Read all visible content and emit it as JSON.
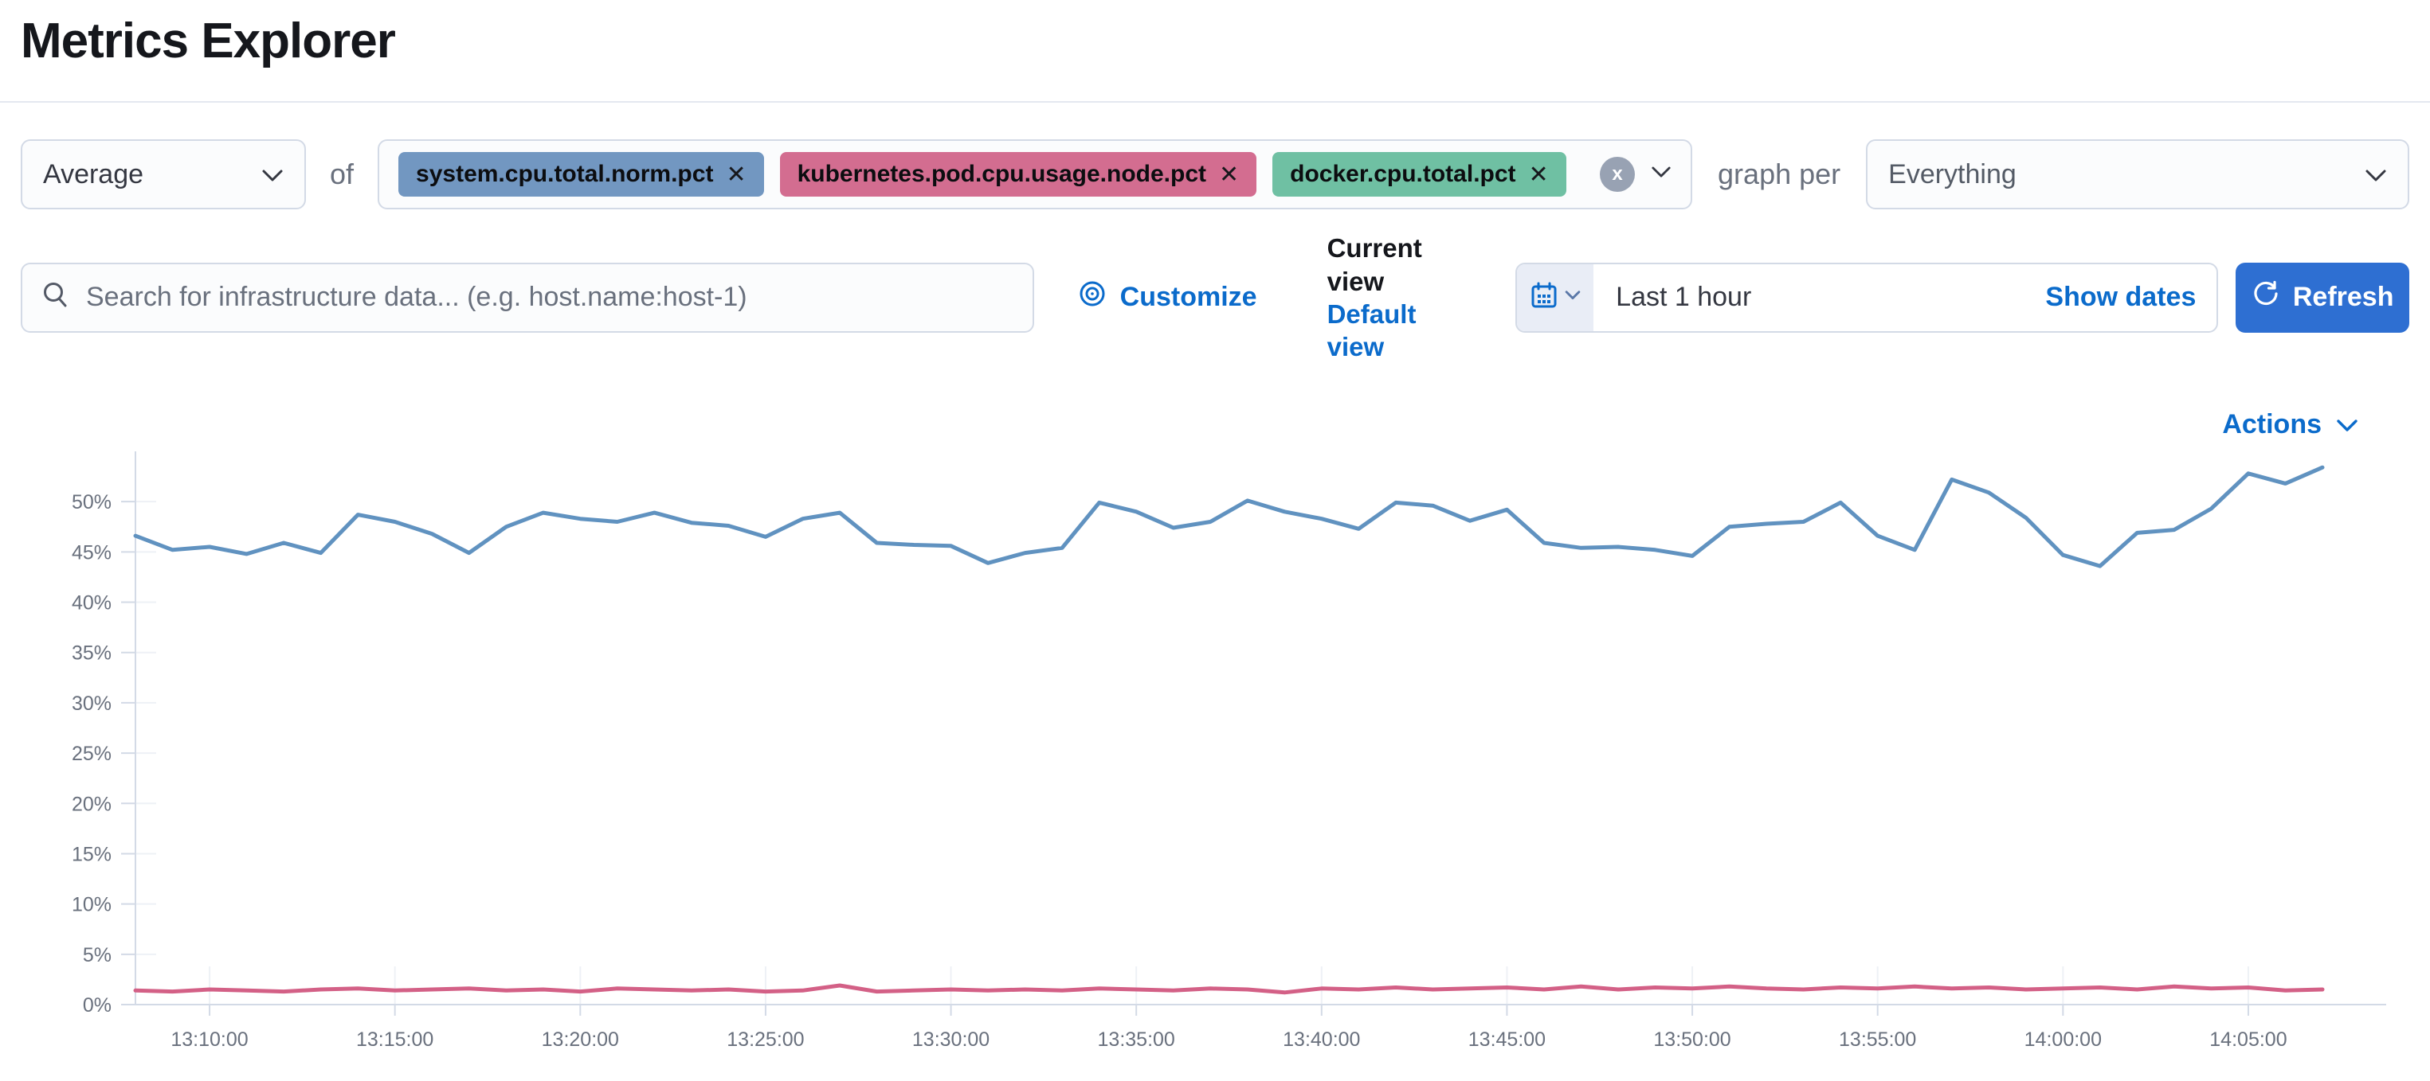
{
  "page": {
    "title": "Metrics Explorer"
  },
  "icons": {
    "aggregation_dropdown": "chevron-down-icon",
    "metrics_clear": "clear-circle-icon",
    "metrics_dropdown": "chevron-down-icon",
    "groupby_dropdown": "chevron-down-icon",
    "search": "magnifier-icon",
    "customize": "eye-icon",
    "datepicker": "calendar-icon",
    "refresh": "refresh-icon",
    "actions": "chevron-down-icon"
  },
  "colors": {
    "link_blue": "#0b6bcb",
    "primary_button_blue": "#2e6fd2",
    "box_border": "#d3dae6",
    "text": "#343741",
    "muted_text": "#69707d",
    "axis_label": "#69707d",
    "line_blue": "#6092c0",
    "line_pink": "#d36086"
  },
  "query_row": {
    "aggregation": {
      "value": "Average"
    },
    "of_label": "of",
    "metrics": [
      {
        "label": "system.cpu.total.norm.pct",
        "remove_label": "✕",
        "color": "#7297c1"
      },
      {
        "label": "kubernetes.pod.cpu.usage.node.pct",
        "remove_label": "✕",
        "color": "#d36d90"
      },
      {
        "label": "docker.cpu.total.pct",
        "remove_label": "✕",
        "color": "#6fc0a3"
      }
    ],
    "clear_label": "x",
    "graph_per_label": "graph per",
    "group_by": {
      "value": "Everything"
    }
  },
  "toolbar": {
    "search": {
      "value": "",
      "placeholder": "Search for infrastructure data... (e.g. host.name:host-1)"
    },
    "customize_label": "Customize",
    "view_switcher": {
      "current_label": "Current view",
      "default_label": "Default view"
    },
    "time_picker": {
      "value": "Last 1 hour",
      "show_dates_label": "Show dates"
    },
    "refresh_label": "Refresh"
  },
  "chart_header": {
    "actions_label": "Actions"
  },
  "chart_data": {
    "type": "line",
    "title": "",
    "xlabel": "",
    "ylabel": "",
    "x_start": "13:08:00",
    "x_step_minutes": 1,
    "x_tick_labels": [
      "13:10:00",
      "13:15:00",
      "13:20:00",
      "13:25:00",
      "13:30:00",
      "13:35:00",
      "13:40:00",
      "13:45:00",
      "13:50:00",
      "13:55:00",
      "14:00:00",
      "14:05:00"
    ],
    "y_tick_labels": [
      "0%",
      "5%",
      "10%",
      "15%",
      "20%",
      "25%",
      "30%",
      "35%",
      "40%",
      "45%",
      "50%"
    ],
    "ylim": [
      0,
      55
    ],
    "legend": "none",
    "grid": "ticks-only",
    "series": [
      {
        "name": "system.cpu.total.norm.pct",
        "color": "#6092c0",
        "unit": "%",
        "values": [
          46.6,
          45.2,
          45.5,
          44.8,
          45.9,
          44.9,
          48.7,
          48.0,
          46.8,
          44.9,
          47.5,
          48.9,
          48.3,
          48.0,
          48.9,
          47.9,
          47.6,
          46.5,
          48.3,
          48.9,
          45.9,
          45.7,
          45.6,
          43.9,
          44.9,
          45.4,
          49.9,
          49.0,
          47.4,
          48.0,
          50.1,
          49.0,
          48.3,
          47.3,
          49.9,
          49.6,
          48.1,
          49.2,
          45.9,
          45.4,
          45.5,
          45.2,
          44.6,
          47.5,
          47.8,
          48.0,
          49.9,
          46.6,
          45.2,
          52.2,
          50.9,
          48.4,
          44.7,
          43.6,
          46.9,
          47.2,
          49.3,
          52.8,
          51.8,
          53.4
        ]
      },
      {
        "name": "kubernetes.pod.cpu.usage.node.pct",
        "color": "#d36086",
        "unit": "%",
        "values": [
          1.4,
          1.3,
          1.5,
          1.4,
          1.3,
          1.5,
          1.6,
          1.4,
          1.5,
          1.6,
          1.4,
          1.5,
          1.3,
          1.6,
          1.5,
          1.4,
          1.5,
          1.3,
          1.4,
          1.9,
          1.3,
          1.4,
          1.5,
          1.4,
          1.5,
          1.4,
          1.6,
          1.5,
          1.4,
          1.6,
          1.5,
          1.2,
          1.6,
          1.5,
          1.7,
          1.5,
          1.6,
          1.7,
          1.5,
          1.8,
          1.5,
          1.7,
          1.6,
          1.8,
          1.6,
          1.5,
          1.7,
          1.6,
          1.8,
          1.6,
          1.7,
          1.5,
          1.6,
          1.7,
          1.5,
          1.8,
          1.6,
          1.7,
          1.4,
          1.5
        ]
      }
    ]
  }
}
